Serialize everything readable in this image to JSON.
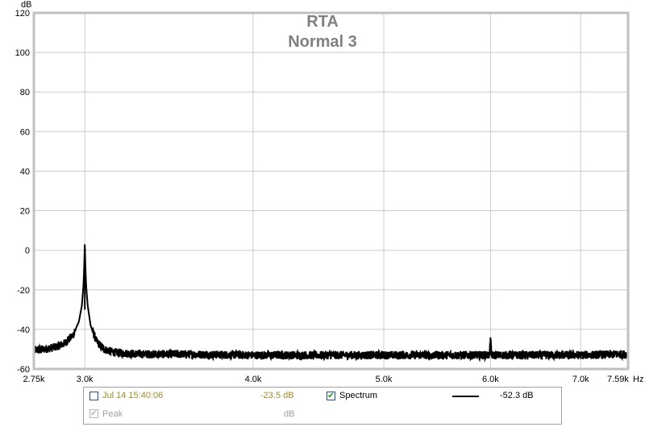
{
  "chart_data": {
    "type": "line",
    "title": "RTA",
    "subtitle": "Normal 3",
    "ylabel": "dB",
    "x_unit": "Hz",
    "x_scale": "log",
    "xlim": [
      2750,
      7590
    ],
    "ylim": [
      -60,
      120
    ],
    "grid": true,
    "y_ticks": [
      120,
      100,
      80,
      60,
      40,
      20,
      0,
      -20,
      -40,
      -60
    ],
    "x_ticks": [
      {
        "value": 2750,
        "label": "2.75k"
      },
      {
        "value": 3000,
        "label": "3.0k"
      },
      {
        "value": 4000,
        "label": "4.0k"
      },
      {
        "value": 5000,
        "label": "5.0k"
      },
      {
        "value": 6000,
        "label": "6.0k"
      },
      {
        "value": 7000,
        "label": "7.0k"
      },
      {
        "value": 7590,
        "label": "7.59k"
      }
    ],
    "series": [
      {
        "name": "Spectrum",
        "color": "#000000",
        "x": [
          2750,
          2800,
          2850,
          2900,
          2940,
          2970,
          2985,
          2993,
          2997,
          3000,
          3003,
          3007,
          3015,
          3030,
          3060,
          3100,
          3150,
          3200,
          3300,
          3500,
          4000,
          4500,
          5000,
          5500,
          5990,
          5995,
          6000,
          6005,
          6010,
          6500,
          7000,
          7590
        ],
        "y": [
          -50.5,
          -50,
          -49,
          -47,
          -43,
          -36,
          -28,
          -18,
          -8,
          3,
          -8,
          -18,
          -28,
          -38,
          -46,
          -50,
          -51.5,
          -52,
          -52.5,
          -52.5,
          -53,
          -53,
          -53,
          -53,
          -53,
          -49,
          -44,
          -49,
          -53,
          -53,
          -53,
          -52.5
        ]
      }
    ]
  },
  "legend": {
    "row1": {
      "timestamp": "Jul 14 15:40:06",
      "value": "-23.5 dB",
      "spectrum_label": "Spectrum",
      "spectrum_value": "-52.3 dB"
    },
    "row2": {
      "peak_label": "Peak",
      "peak_value": "dB"
    },
    "checkbox_checked_glyph": "✔"
  }
}
